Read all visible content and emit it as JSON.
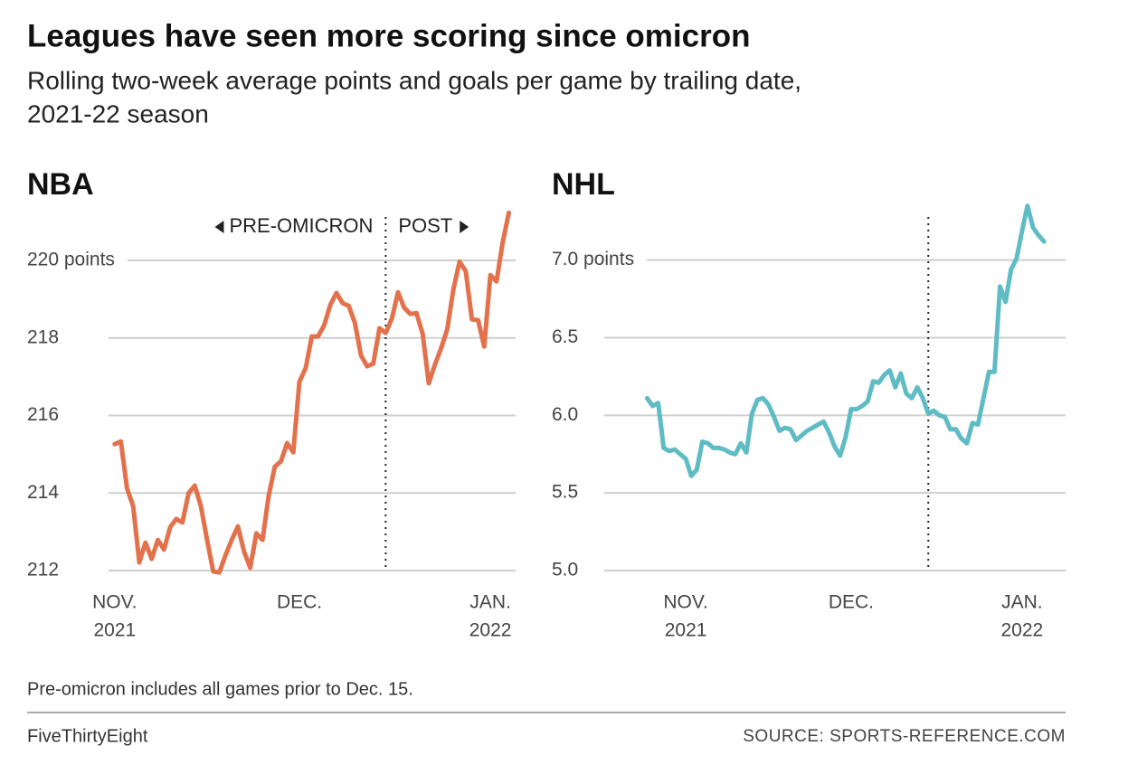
{
  "title": "Leagues have seen more scoring since omicron",
  "subtitle": [
    "Rolling two-week average points and goals per game by trailing date,",
    "2021-22 season"
  ],
  "note": "Pre-omicron includes all games prior to Dec. 15.",
  "credit": "FiveThirtyEight",
  "source": "SOURCE: SPORTS-REFERENCE.COM",
  "chart_data": [
    {
      "type": "line",
      "title": "NBA",
      "color": "#e3714b",
      "x": [
        0,
        1,
        2,
        3,
        4,
        5,
        6,
        7,
        8,
        9,
        10,
        11,
        12,
        13,
        14,
        15,
        16,
        17,
        18,
        19,
        20,
        21,
        22,
        23,
        24,
        25,
        26,
        27,
        28,
        29,
        30,
        31,
        32,
        33,
        34,
        35,
        36,
        37,
        38,
        39,
        40,
        41,
        42,
        43,
        44,
        45,
        46,
        47,
        48,
        49,
        50,
        51,
        52,
        53,
        54,
        55,
        56,
        57,
        58,
        59,
        60,
        61,
        62,
        63,
        64
      ],
      "values": [
        215.26,
        215.33,
        214.12,
        213.66,
        212.21,
        212.72,
        212.3,
        212.79,
        212.54,
        213.12,
        213.33,
        213.24,
        214.0,
        214.19,
        213.66,
        212.79,
        211.98,
        211.95,
        212.4,
        212.79,
        213.14,
        212.49,
        212.07,
        212.96,
        212.79,
        213.93,
        214.68,
        214.82,
        215.29,
        215.05,
        216.87,
        217.22,
        218.04,
        218.04,
        218.32,
        218.85,
        219.16,
        218.9,
        218.83,
        218.39,
        217.55,
        217.27,
        217.34,
        218.25,
        218.13,
        218.5,
        219.18,
        218.78,
        218.62,
        218.64,
        218.11,
        216.83,
        217.31,
        217.73,
        218.22,
        219.25,
        219.97,
        219.72,
        218.48,
        218.46,
        217.78,
        219.62,
        219.46,
        220.46,
        221.23
      ],
      "xlim": [
        -1,
        65.1
      ],
      "xticks": [
        {
          "value": 0,
          "label": [
            "NOV.",
            "2021"
          ]
        },
        {
          "value": 30,
          "label": "DEC."
        },
        {
          "value": 61,
          "label": [
            "JAN.",
            "2022"
          ]
        }
      ],
      "ylim": [
        212,
        221.4
      ],
      "yticks": [
        212,
        214,
        216,
        218,
        {
          "value": 220,
          "label": "220 points"
        }
      ],
      "grid": true,
      "vline": 44,
      "annotations": [
        "PRE-OMICRON",
        "POST"
      ]
    },
    {
      "type": "line",
      "title": "NHL",
      "color": "#5fbcc4",
      "x": [
        -7,
        -6,
        -5,
        -4,
        -3,
        -2,
        -1,
        0,
        1,
        2,
        3,
        4,
        5,
        6,
        7,
        8,
        9,
        10,
        11,
        12,
        13,
        14,
        15,
        16,
        17,
        18,
        19,
        20,
        21,
        22,
        23,
        24,
        25,
        26,
        27,
        28,
        29,
        30,
        31,
        32,
        33,
        34,
        35,
        36,
        37,
        38,
        39,
        40,
        41,
        42,
        43,
        44,
        45,
        46,
        47,
        48,
        49,
        50,
        51,
        52,
        53,
        54,
        55,
        56,
        57,
        58,
        59,
        60,
        61,
        62,
        63,
        64,
        65
      ],
      "values": [
        6.11,
        6.06,
        6.08,
        5.79,
        5.77,
        5.78,
        5.75,
        5.72,
        5.61,
        5.65,
        5.83,
        5.82,
        5.79,
        5.79,
        5.78,
        5.76,
        5.75,
        5.82,
        5.76,
        6.01,
        6.1,
        6.11,
        6.07,
        5.99,
        5.9,
        5.92,
        5.91,
        5.84,
        5.87,
        5.9,
        5.92,
        5.94,
        5.96,
        5.89,
        5.8,
        5.74,
        5.86,
        6.04,
        6.04,
        6.06,
        6.09,
        6.22,
        6.21,
        6.26,
        6.29,
        6.18,
        6.27,
        6.14,
        6.11,
        6.18,
        6.11,
        6.01,
        6.03,
        6.0,
        5.99,
        5.91,
        5.91,
        5.85,
        5.82,
        5.95,
        5.94,
        6.11,
        6.28,
        6.28,
        6.83,
        6.73,
        6.94,
        7.01,
        7.19,
        7.35,
        7.21,
        7.16,
        7.12
      ],
      "xlim": [
        -24.3,
        68.9
      ],
      "xticks": [
        {
          "value": 0,
          "label": [
            "NOV.",
            "2021"
          ]
        },
        {
          "value": 30,
          "label": "DEC."
        },
        {
          "value": 61,
          "label": [
            "JAN.",
            "2022"
          ]
        }
      ],
      "ylim": [
        5,
        7.4
      ],
      "yticks": [
        {
          "value": 5,
          "label": "5.0"
        },
        {
          "value": 5.5,
          "label": "5.5"
        },
        {
          "value": 6,
          "label": "6.0"
        },
        {
          "value": 6.5,
          "label": "6.5"
        },
        {
          "value": 7,
          "label": "7.0 points"
        }
      ],
      "grid": true,
      "vline": 44
    }
  ]
}
